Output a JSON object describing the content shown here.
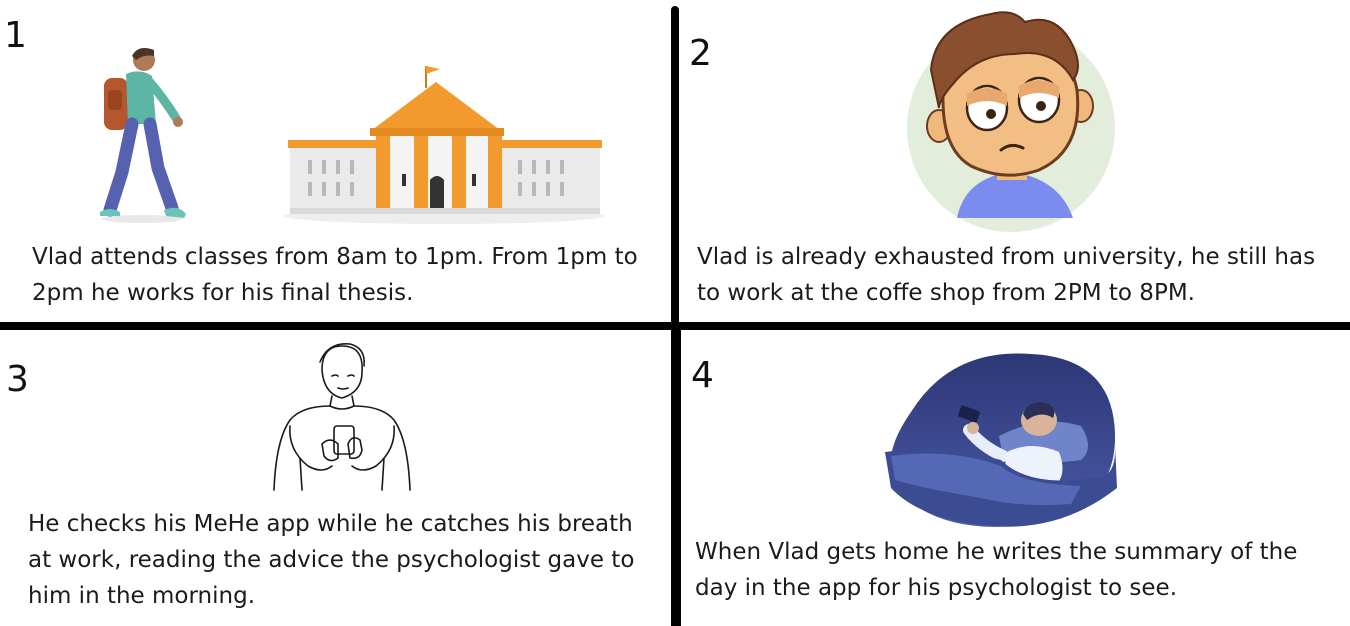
{
  "panels": [
    {
      "number": "1",
      "caption": "Vlad attends classes from 8am to 1pm. From 1pm to 2pm he works for his final thesis."
    },
    {
      "number": "2",
      "caption": "Vlad is already exhausted from university, he still has to work at the coffe shop from 2PM to 8PM."
    },
    {
      "number": "3",
      "caption": "He checks his MeHe app while he catches his breath at work, reading the advice the psychologist gave to him in the morning."
    },
    {
      "number": "4",
      "caption": "When Vlad gets home he writes the summary of the day in the app for his psychologist to see."
    }
  ],
  "illustrations": {
    "panel1": [
      "student-walking-illustration",
      "university-building-illustration"
    ],
    "panel2": [
      "tired-face-illustration"
    ],
    "panel3": [
      "man-using-phone-sketch"
    ],
    "panel4": [
      "man-in-bed-with-phone-illustration"
    ]
  },
  "colors": {
    "divider": "#000000",
    "building_orange": "#f29a2e",
    "night_blue": "#3d4f95"
  }
}
